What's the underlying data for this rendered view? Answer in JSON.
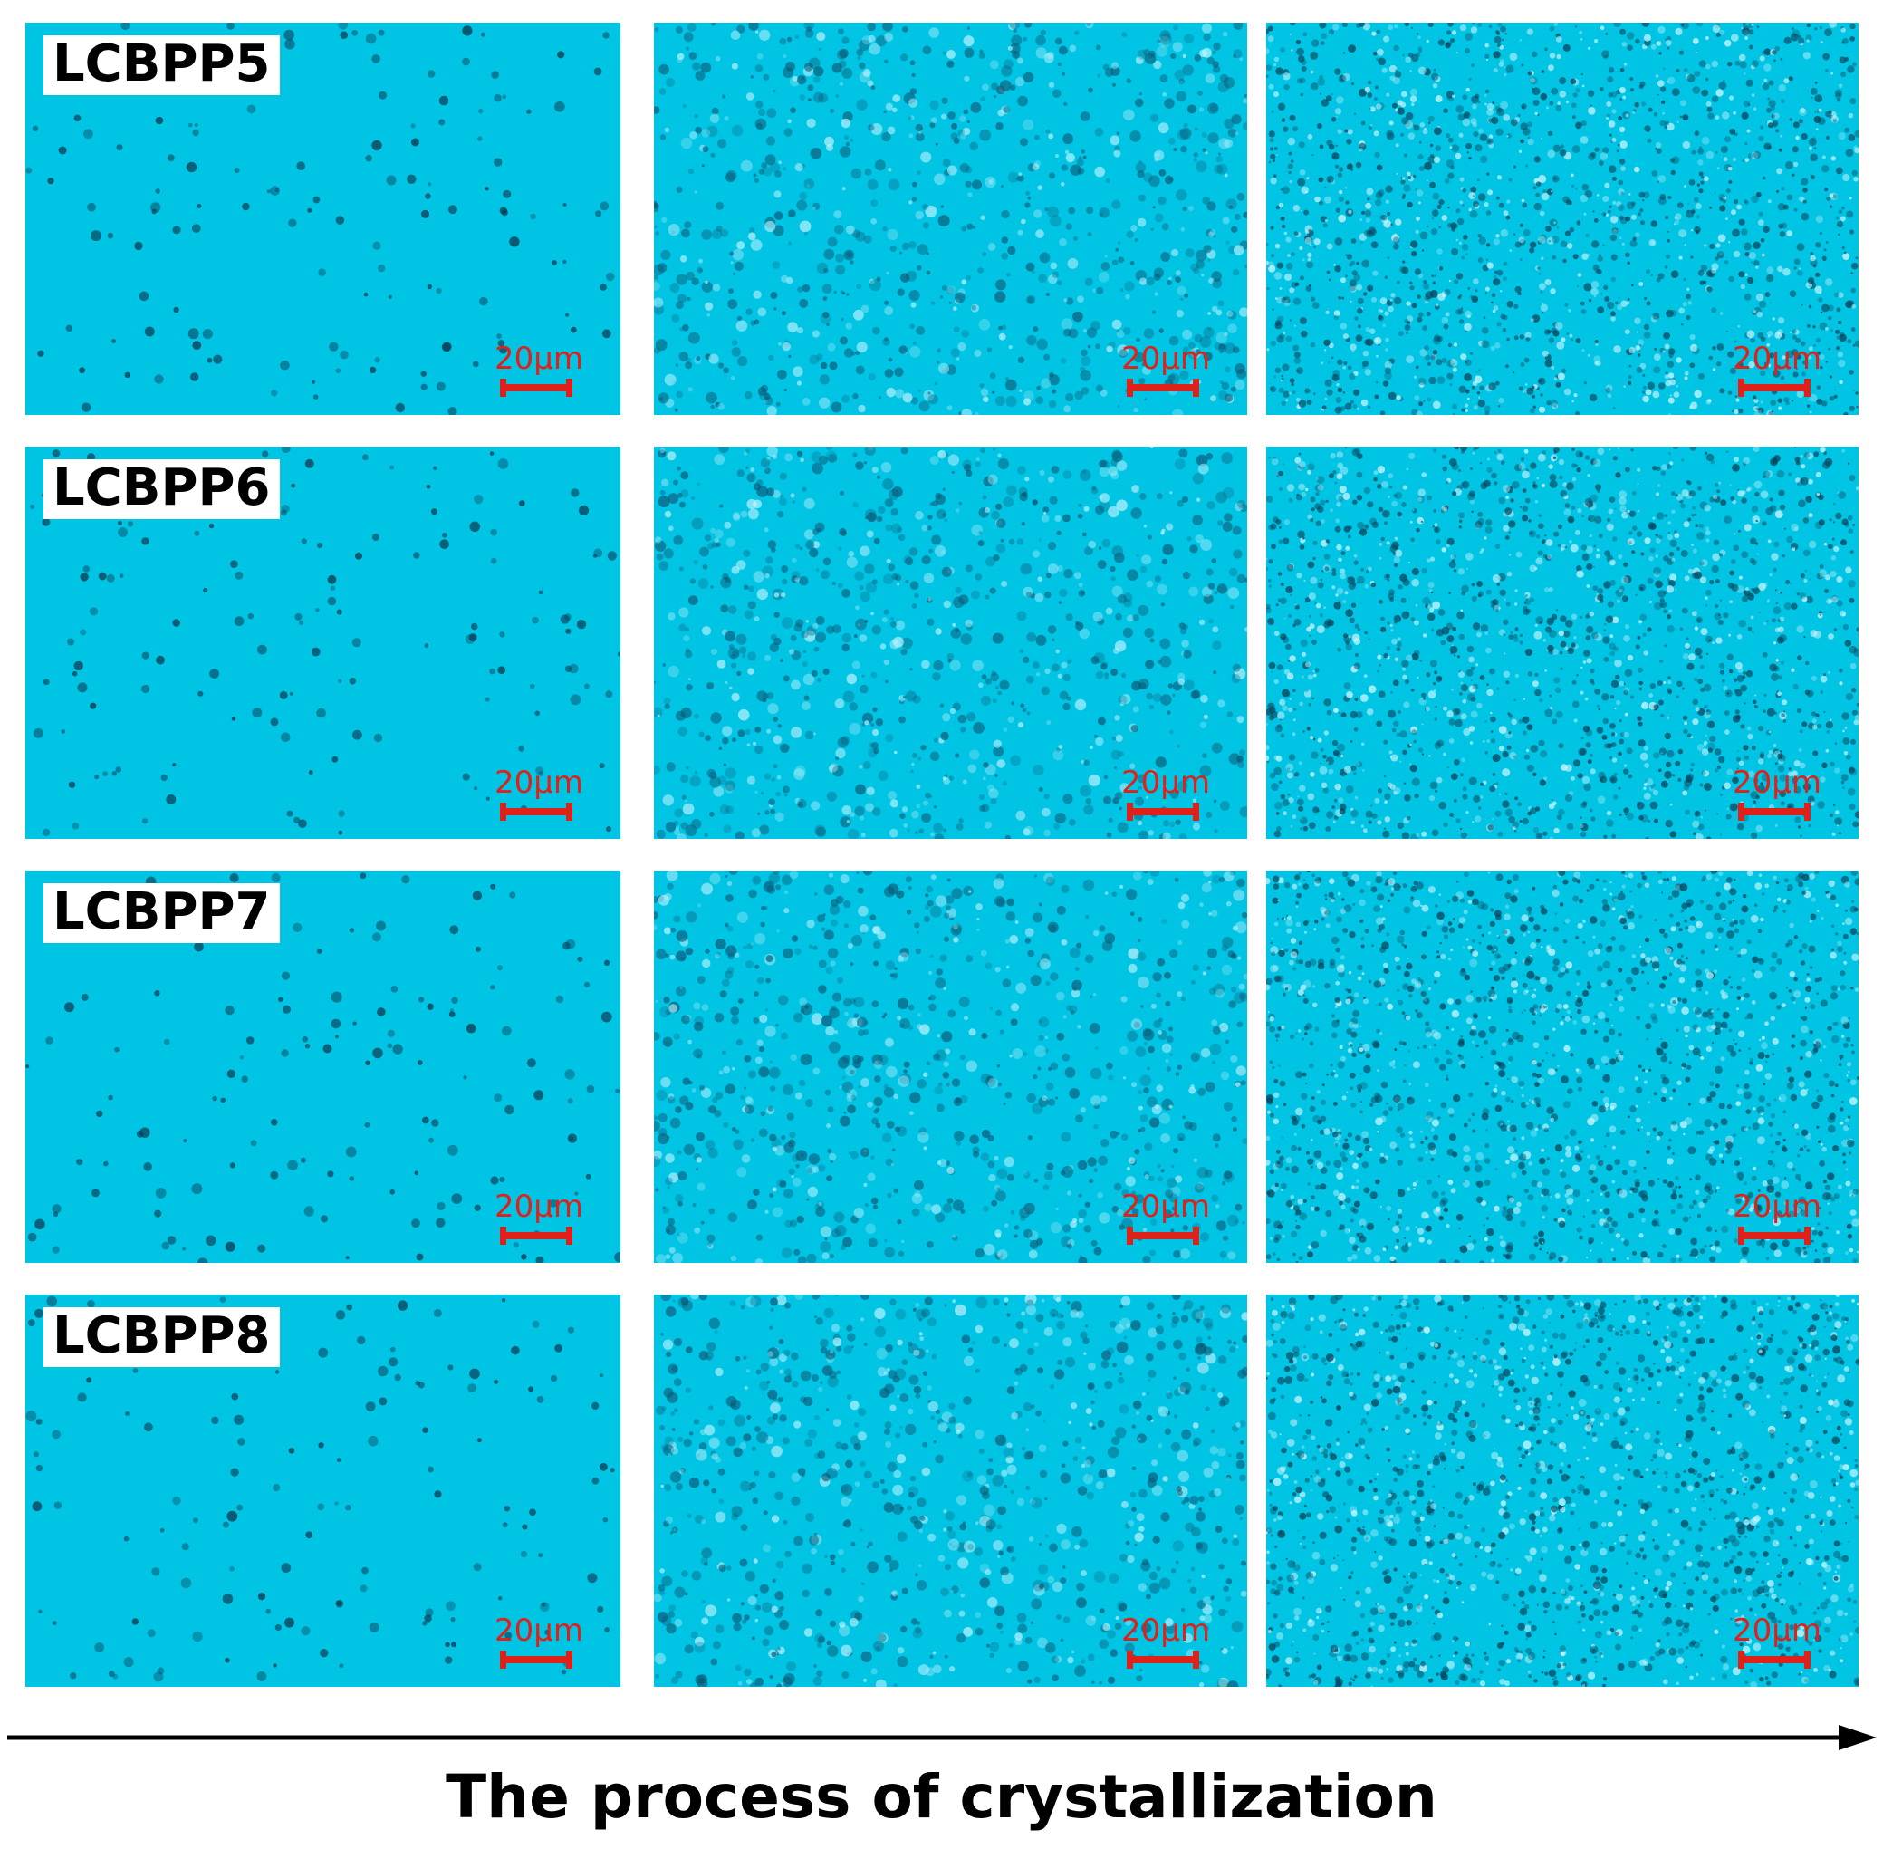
{
  "figure": {
    "caption": "The process of crystallization",
    "background_color": "#00c4e4",
    "scale_color": "#e0211a",
    "rows": [
      {
        "label": "LCBPP5",
        "stages": [
          {
            "scale": "20µm"
          },
          {
            "scale": "20µm"
          },
          {
            "scale": "20µm"
          }
        ]
      },
      {
        "label": "LCBPP6",
        "stages": [
          {
            "scale": "20µm"
          },
          {
            "scale": "20µm"
          },
          {
            "scale": "20µm"
          }
        ]
      },
      {
        "label": "LCBPP7",
        "stages": [
          {
            "scale": "20µm"
          },
          {
            "scale": "20µm"
          },
          {
            "scale": "20µm"
          }
        ]
      },
      {
        "label": "LCBPP8",
        "stages": [
          {
            "scale": "20µm"
          },
          {
            "scale": "20µm"
          },
          {
            "scale": "20µm"
          }
        ]
      }
    ]
  }
}
